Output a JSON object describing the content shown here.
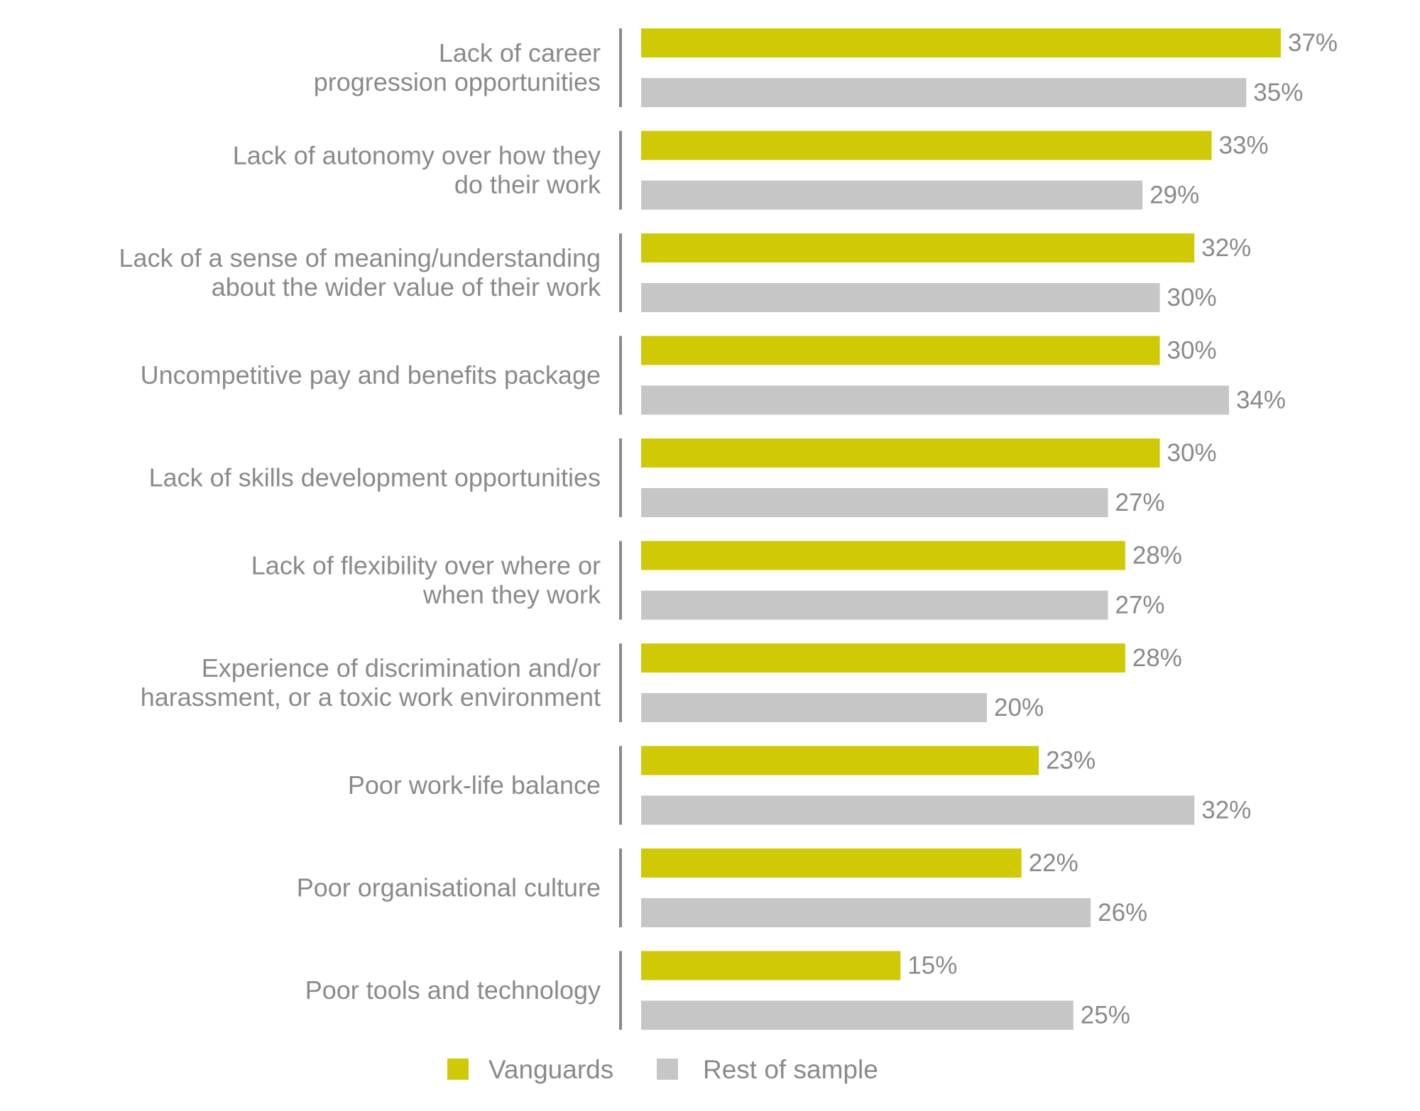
{
  "chart_data": {
    "type": "bar",
    "orientation": "horizontal",
    "categories": [
      [
        "Lack of career",
        "progression opportunities"
      ],
      [
        "Lack of autonomy over how they",
        "do their work"
      ],
      [
        "Lack of a sense of meaning/understanding",
        "about the wider value of their work"
      ],
      [
        "Uncompetitive pay and benefits package"
      ],
      [
        "Lack of skills development opportunities"
      ],
      [
        "Lack of flexibility over where or",
        "when they work"
      ],
      [
        "Experience of discrimination and/or",
        "harassment, or a toxic work environment"
      ],
      [
        "Poor work-life balance"
      ],
      [
        "Poor organisational culture"
      ],
      [
        "Poor tools and technology"
      ]
    ],
    "series": [
      {
        "name": "Vanguards",
        "color": "#d0ca06",
        "values": [
          37,
          33,
          32,
          30,
          30,
          28,
          28,
          23,
          22,
          15
        ]
      },
      {
        "name": "Rest of sample",
        "color": "#c6c6c6",
        "values": [
          35,
          29,
          30,
          34,
          27,
          27,
          20,
          32,
          26,
          25
        ]
      }
    ],
    "value_suffix": "%",
    "xlim": [
      0,
      37
    ],
    "grid": false,
    "legend_position": "bottom",
    "text_color": "#8a8a8a",
    "axis_line_color": "#8a8a8a"
  }
}
